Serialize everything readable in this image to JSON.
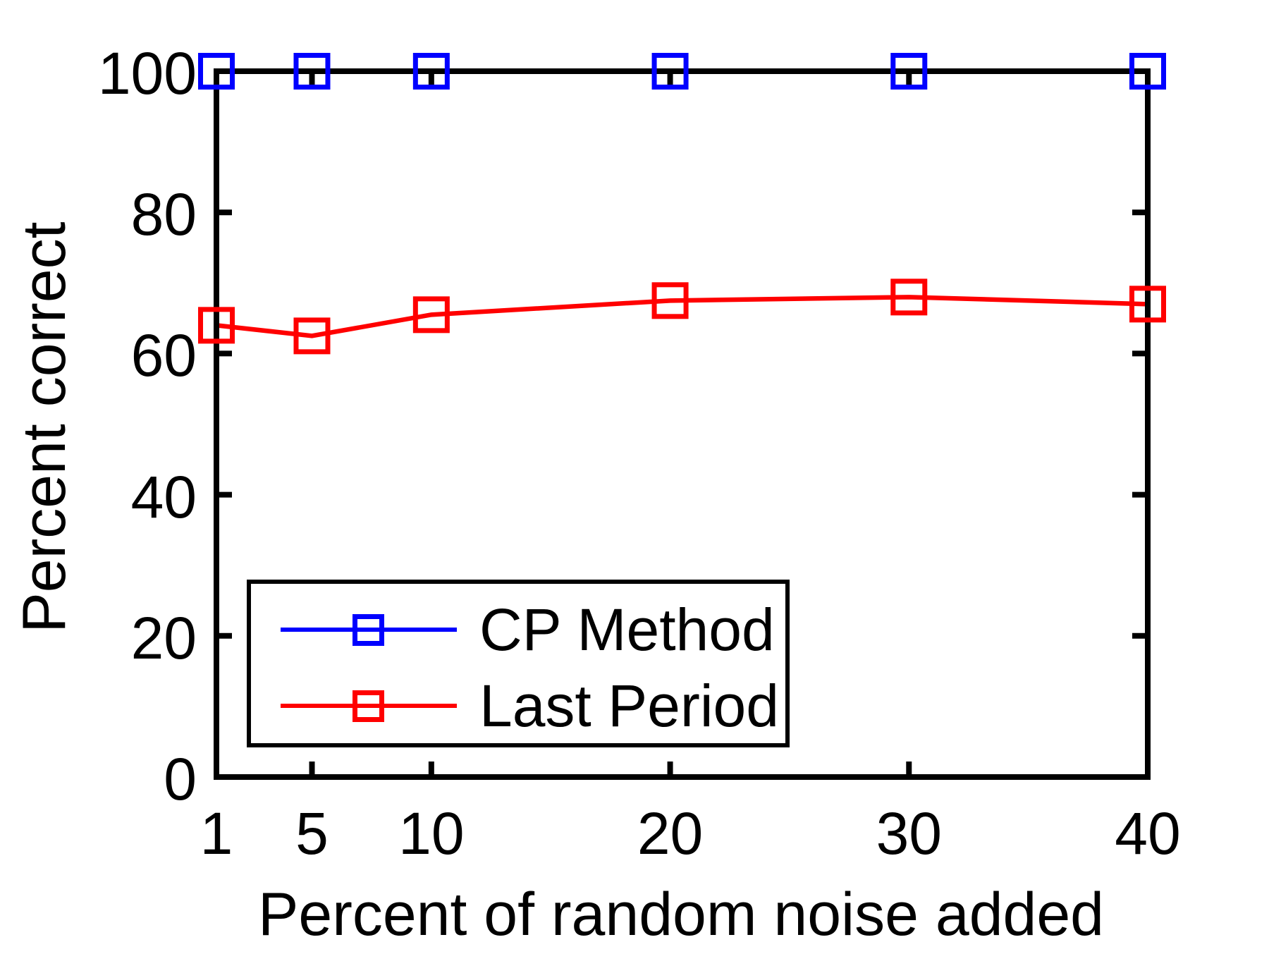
{
  "figure": {
    "background_color": "#ffffff",
    "axis_color": "#000000",
    "text_color": "#000000"
  },
  "chart_data": {
    "type": "line",
    "title": "",
    "xlabel": "Percent of random noise added",
    "ylabel": "Percent correct",
    "x": [
      1,
      5,
      10,
      20,
      30,
      40
    ],
    "xticks": [
      1,
      5,
      10,
      20,
      30,
      40
    ],
    "yticks": [
      0,
      20,
      40,
      60,
      80,
      100
    ],
    "xlim": [
      1,
      40
    ],
    "ylim": [
      0,
      100
    ],
    "grid": false,
    "legend_position": "lower-left-inside",
    "series": [
      {
        "name": "CP Method",
        "color": "#0000ff",
        "marker": "square",
        "values": [
          100,
          100,
          100,
          100,
          100,
          100
        ]
      },
      {
        "name": "Last Period",
        "color": "#ff0000",
        "marker": "square",
        "values": [
          64,
          62.5,
          65.5,
          67.5,
          68,
          67
        ]
      }
    ]
  }
}
